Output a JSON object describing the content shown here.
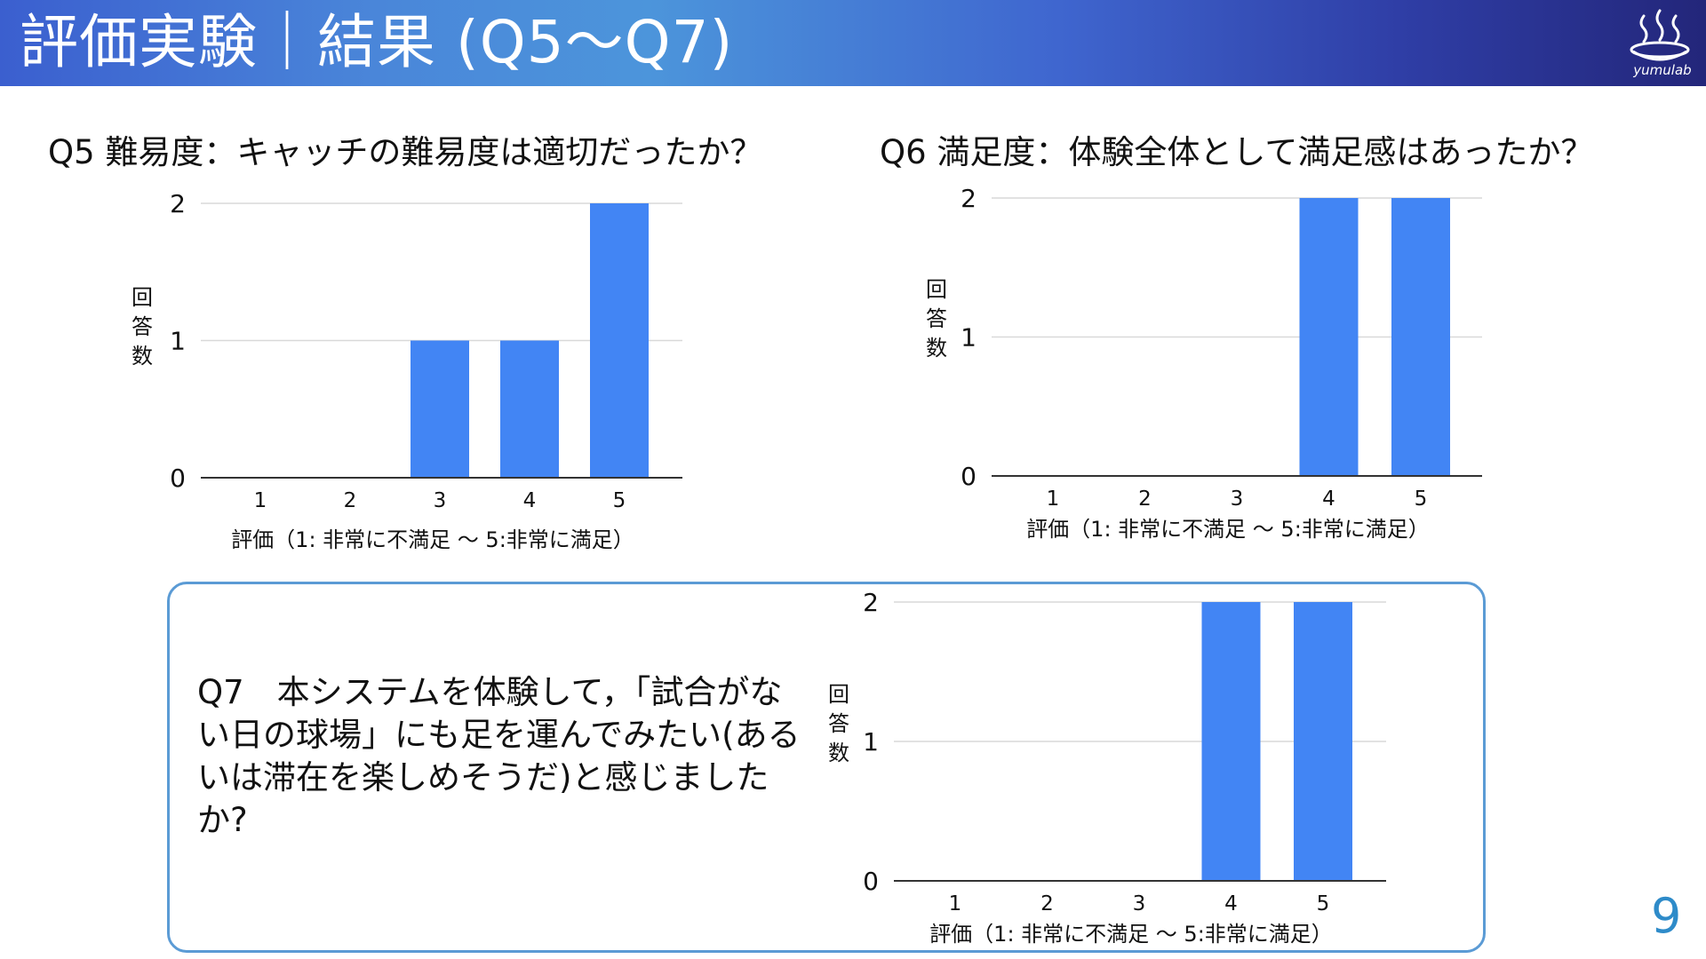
{
  "header": {
    "title": "評価実験｜結果 (Q5〜Q7)",
    "logo_text": "yumulab"
  },
  "colors": {
    "bar": "#4285f4",
    "grid": "#d9d9d9",
    "axis": "#333333",
    "box_border": "#5b9bd5",
    "page_number": "#2e8bc9"
  },
  "questions": {
    "q5_title": "Q5 難易度：キャッチの難易度は適切だったか？",
    "q6_title": "Q6 満足度：体験全体として満足感はあったか？",
    "q7_text": "Q7　本システムを体験して，「試合がない日の球場」にも足を運んでみたい(あるいは滞在を楽しめそうだ)と感じましたか?"
  },
  "page_number": "9",
  "chart_data": [
    {
      "type": "bar",
      "categories": [
        "1",
        "2",
        "3",
        "4",
        "5"
      ],
      "values": [
        0,
        0,
        1,
        1,
        2
      ],
      "title": "Q5 難易度：キャッチの難易度は適切だったか？",
      "xlabel": "評価（1: 非常に不満足 〜 5:非常に満足）",
      "ylabel": "回答数",
      "yticks": [
        "0",
        "1",
        "2"
      ],
      "ylim": [
        0,
        2
      ],
      "grid": true
    },
    {
      "type": "bar",
      "categories": [
        "1",
        "2",
        "3",
        "4",
        "5"
      ],
      "values": [
        0,
        0,
        0,
        2,
        2
      ],
      "title": "Q6 満足度：体験全体として満足感はあったか？",
      "xlabel": "評価（1: 非常に不満足 〜 5:非常に満足）",
      "ylabel": "回答数",
      "yticks": [
        "0",
        "1",
        "2"
      ],
      "ylim": [
        0,
        2
      ],
      "grid": true
    },
    {
      "type": "bar",
      "categories": [
        "1",
        "2",
        "3",
        "4",
        "5"
      ],
      "values": [
        0,
        0,
        0,
        2,
        2
      ],
      "title": "Q7　本システムを体験して，「試合がない日の球場」にも足を運んでみたい(あるいは滞在を楽しめそうだ)と感じましたか?",
      "xlabel": "評価（1: 非常に不満足 〜 5:非常に満足）",
      "ylabel": "回答数",
      "yticks": [
        "0",
        "1",
        "2"
      ],
      "ylim": [
        0,
        2
      ],
      "grid": true
    }
  ]
}
